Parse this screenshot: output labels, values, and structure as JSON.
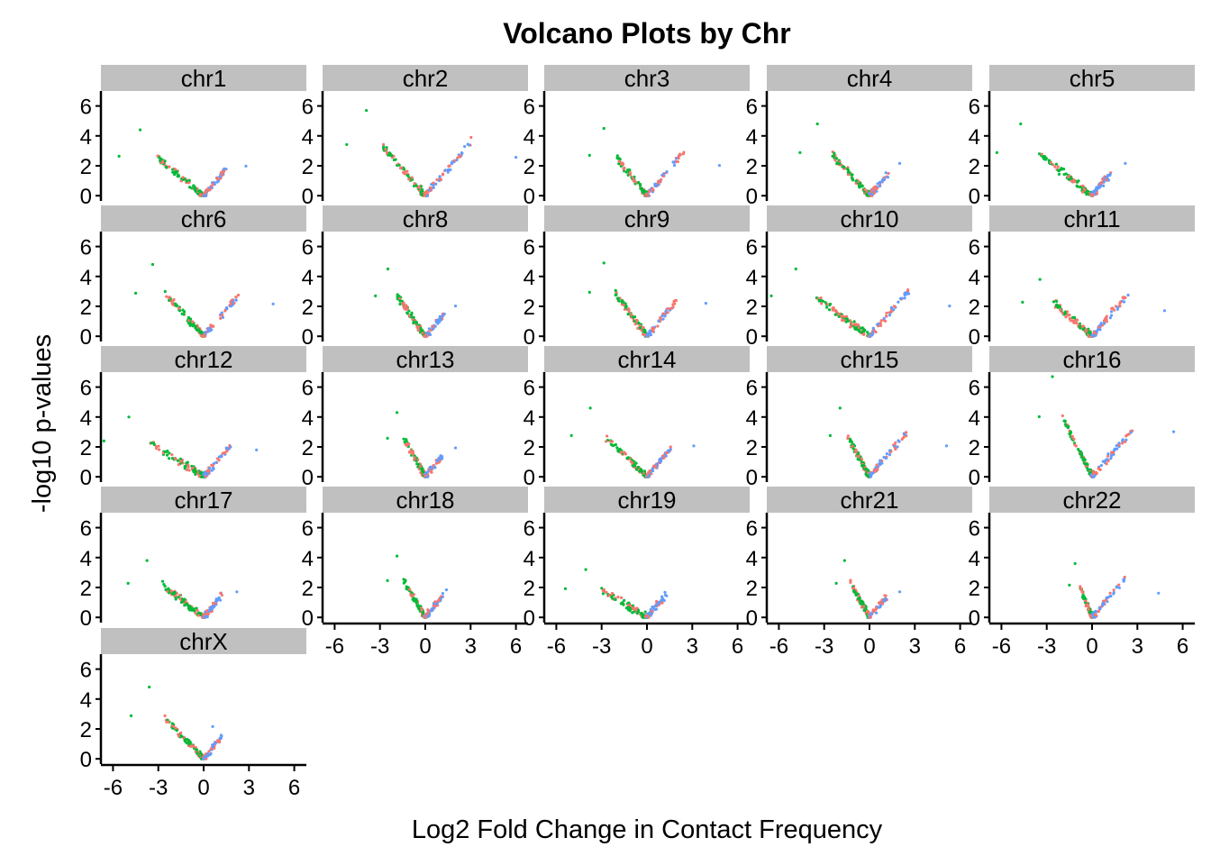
{
  "chart_data": {
    "type": "scatter",
    "title": "Volcano Plots by Chr",
    "xlabel": "Log2 Fold Change in Contact Frequency",
    "ylabel": "-log10 p-values",
    "xlim": [
      -6.8,
      6.8
    ],
    "ylim": [
      -0.35,
      7.0
    ],
    "x_ticks": [
      -6,
      -3,
      0,
      3,
      6
    ],
    "x_tick_labels": [
      "-6",
      "-3",
      "0",
      "3",
      "6"
    ],
    "y_ticks": [
      0,
      2,
      4,
      6
    ],
    "y_tick_labels": [
      "0",
      "2",
      "4",
      "6"
    ],
    "grid": false,
    "legend": "none",
    "colors": {
      "series_1": "#F8766D",
      "series_2": "#00BA38",
      "series_3": "#619CFF",
      "strip": "#C0C0C0",
      "axis": "#000000"
    },
    "panels": [
      {
        "name": "chr1",
        "min_x": -5.6,
        "max_x": 2.8,
        "peak_y": 4.4
      },
      {
        "name": "chr2",
        "min_x": -5.2,
        "max_x": 6.0,
        "peak_y": 5.7
      },
      {
        "name": "chr3",
        "min_x": -3.8,
        "max_x": 4.8,
        "peak_y": 4.5
      },
      {
        "name": "chr4",
        "min_x": -4.6,
        "max_x": 2.0,
        "peak_y": 4.8
      },
      {
        "name": "chr5",
        "min_x": -6.3,
        "max_x": 2.2,
        "peak_y": 4.8
      },
      {
        "name": "chr6",
        "min_x": -4.5,
        "max_x": 4.6,
        "peak_y": 4.8
      },
      {
        "name": "chr8",
        "min_x": -3.3,
        "max_x": 2.0,
        "peak_y": 4.5
      },
      {
        "name": "chr9",
        "min_x": -3.8,
        "max_x": 3.9,
        "peak_y": 4.9
      },
      {
        "name": "chr10",
        "min_x": -6.5,
        "max_x": 5.3,
        "peak_y": 4.5
      },
      {
        "name": "chr11",
        "min_x": -4.6,
        "max_x": 4.8,
        "peak_y": 3.8
      },
      {
        "name": "chr12",
        "min_x": -6.6,
        "max_x": 3.5,
        "peak_y": 4.0
      },
      {
        "name": "chr13",
        "min_x": -2.5,
        "max_x": 2.0,
        "peak_y": 4.3
      },
      {
        "name": "chr14",
        "min_x": -5.0,
        "max_x": 3.1,
        "peak_y": 4.6
      },
      {
        "name": "chr15",
        "min_x": -2.6,
        "max_x": 5.1,
        "peak_y": 4.6
      },
      {
        "name": "chr16",
        "min_x": -3.5,
        "max_x": 5.4,
        "peak_y": 6.7
      },
      {
        "name": "chr17",
        "min_x": -5.0,
        "max_x": 2.2,
        "peak_y": 3.8
      },
      {
        "name": "chr18",
        "min_x": -2.5,
        "max_x": 1.4,
        "peak_y": 4.1
      },
      {
        "name": "chr19",
        "min_x": -5.4,
        "max_x": 1.3,
        "peak_y": 3.2
      },
      {
        "name": "chr21",
        "min_x": -2.2,
        "max_x": 2.0,
        "peak_y": 3.8
      },
      {
        "name": "chr22",
        "min_x": -1.5,
        "max_x": 4.4,
        "peak_y": 3.6
      },
      {
        "name": "chrX",
        "min_x": -4.8,
        "max_x": 0.6,
        "peak_y": 4.8
      }
    ]
  }
}
